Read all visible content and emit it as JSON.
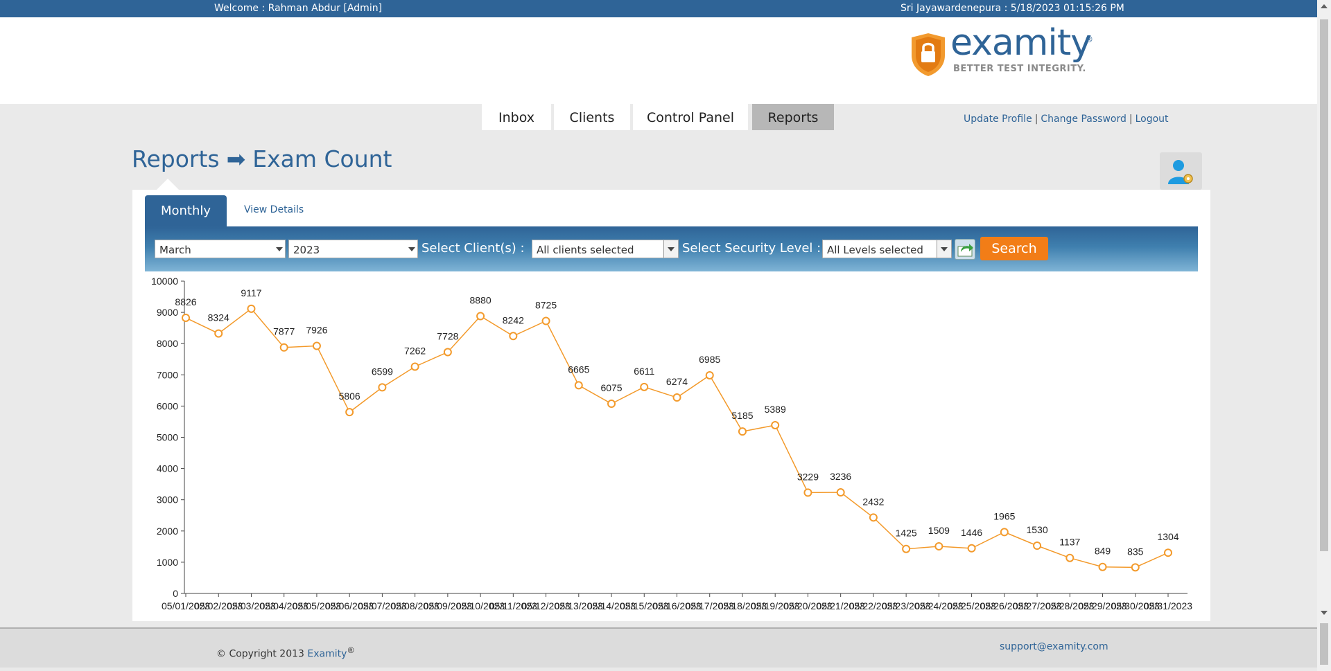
{
  "topbar": {
    "welcome": "Welcome : Rahman Abdur [Admin]",
    "clock": "Sri Jayawardenepura : 5/18/2023 01:15:26 PM"
  },
  "logo": {
    "word": "examity",
    "reg": "®",
    "tagline": "BETTER TEST INTEGRITY."
  },
  "nav": {
    "tabs": [
      {
        "label": "Inbox"
      },
      {
        "label": "Clients"
      },
      {
        "label": "Control Panel"
      },
      {
        "label": "Reports"
      }
    ],
    "active": "Reports"
  },
  "user_links": {
    "update_profile": "Update Profile",
    "sep": "|",
    "change_password": "Change Password",
    "logout": "Logout"
  },
  "page": {
    "section": "Reports",
    "arrow": "➡",
    "title": "Exam Count"
  },
  "subtabs": {
    "monthly": "Monthly",
    "view_details": "View Details"
  },
  "filters": {
    "month": "March",
    "year": "2023",
    "clients_label": "Select Client(s) :",
    "clients_value": "All clients selected",
    "security_label": "Select Security Level :",
    "security_value": "All Levels selected",
    "search": "Search"
  },
  "chart_data": {
    "type": "line",
    "title": "",
    "xlabel": "",
    "ylabel": "",
    "ylim": [
      0,
      10000
    ],
    "yticks": [
      0,
      1000,
      2000,
      3000,
      4000,
      5000,
      6000,
      7000,
      8000,
      9000,
      10000
    ],
    "x": [
      "05/01/2023",
      "05/02/2023",
      "05/03/2023",
      "05/04/2023",
      "05/05/2023",
      "05/06/2023",
      "05/07/2023",
      "05/08/2023",
      "05/09/2023",
      "05/10/2023",
      "05/11/2023",
      "05/12/2023",
      "05/13/2023",
      "05/14/2023",
      "05/15/2023",
      "05/16/2023",
      "05/17/2023",
      "05/18/2023",
      "05/19/2023",
      "05/20/2023",
      "05/21/2023",
      "05/22/2023",
      "05/23/2023",
      "05/24/2023",
      "05/25/2023",
      "05/26/2023",
      "05/27/2023",
      "05/28/2023",
      "05/29/2023",
      "05/30/2023",
      "05/31/2023"
    ],
    "values": [
      8826,
      8324,
      9117,
      7877,
      7926,
      5806,
      6599,
      7262,
      7728,
      8880,
      8242,
      8725,
      6665,
      6075,
      6611,
      6274,
      6985,
      5185,
      5389,
      3229,
      3236,
      2432,
      1425,
      1509,
      1446,
      1965,
      1530,
      1137,
      849,
      835,
      1304
    ],
    "color": "#f39a2b",
    "grid": false
  },
  "footer": {
    "copyright": "© Copyright 2013 ",
    "brand": "Examity",
    "reg": "®",
    "support": "support@examity.com"
  }
}
